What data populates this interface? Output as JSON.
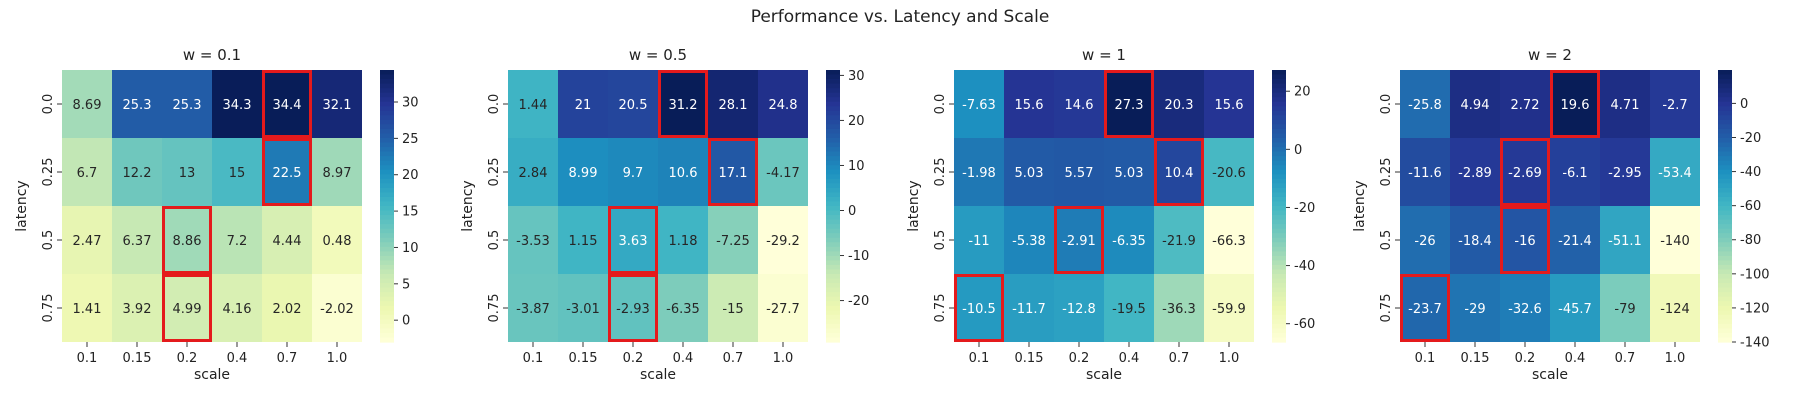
{
  "title": "Performance vs. Latency and Scale",
  "chart_data": [
    {
      "type": "heatmap",
      "title": "w = 0.1",
      "xlabel": "scale",
      "ylabel": "latency",
      "x_categories": [
        "0.1",
        "0.15",
        "0.2",
        "0.4",
        "0.7",
        "1.0"
      ],
      "y_categories": [
        "0.0",
        "0.25",
        "0.5",
        "0.75"
      ],
      "values": [
        [
          8.69,
          25.3,
          25.3,
          34.3,
          34.4,
          32.1
        ],
        [
          6.7,
          12.2,
          13,
          15,
          22.5,
          8.97
        ],
        [
          2.47,
          6.37,
          8.86,
          7.2,
          4.44,
          0.48
        ],
        [
          1.41,
          3.92,
          4.99,
          4.16,
          2.02,
          -2.02
        ]
      ],
      "labels": [
        [
          "8.69",
          "25.3",
          "25.3",
          "34.3",
          "34.4",
          "32.1"
        ],
        [
          "6.7",
          "12.2",
          "13",
          "15",
          "22.5",
          "8.97"
        ],
        [
          "2.47",
          "6.37",
          "8.86",
          "7.2",
          "4.44",
          "0.48"
        ],
        [
          "1.41",
          "3.92",
          "4.99",
          "4.16",
          "2.02",
          "-2.02"
        ]
      ],
      "vmin": -3,
      "vmax": 34.4,
      "colorbar_ticks": [
        "0",
        "5",
        "10",
        "15",
        "20",
        "25",
        "30"
      ],
      "highlighted": [
        [
          0,
          4
        ],
        [
          1,
          4
        ],
        [
          2,
          2
        ],
        [
          3,
          2
        ]
      ]
    },
    {
      "type": "heatmap",
      "title": "w = 0.5",
      "xlabel": "scale",
      "ylabel": "latency",
      "x_categories": [
        "0.1",
        "0.15",
        "0.2",
        "0.4",
        "0.7",
        "1.0"
      ],
      "y_categories": [
        "0.0",
        "0.25",
        "0.5",
        "0.75"
      ],
      "values": [
        [
          1.44,
          21,
          20.5,
          31.2,
          28.1,
          24.8
        ],
        [
          2.84,
          8.99,
          9.7,
          10.6,
          17.1,
          -4.17
        ],
        [
          -3.53,
          1.15,
          3.63,
          1.18,
          -7.25,
          -29.2
        ],
        [
          -3.87,
          -3.01,
          -2.93,
          -6.35,
          -15,
          -27.7
        ]
      ],
      "labels": [
        [
          "1.44",
          "21",
          "20.5",
          "31.2",
          "28.1",
          "24.8"
        ],
        [
          "2.84",
          "8.99",
          "9.7",
          "10.6",
          "17.1",
          "-4.17"
        ],
        [
          "-3.53",
          "1.15",
          "3.63",
          "1.18",
          "-7.25",
          "-29.2"
        ],
        [
          "-3.87",
          "-3.01",
          "-2.93",
          "-6.35",
          "-15",
          "-27.7"
        ]
      ],
      "vmin": -29.2,
      "vmax": 31.2,
      "colorbar_ticks": [
        "-20",
        "-10",
        "0",
        "10",
        "20",
        "30"
      ],
      "highlighted": [
        [
          0,
          3
        ],
        [
          1,
          4
        ],
        [
          2,
          2
        ],
        [
          3,
          2
        ]
      ]
    },
    {
      "type": "heatmap",
      "title": "w = 1",
      "xlabel": "scale",
      "ylabel": "latency",
      "x_categories": [
        "0.1",
        "0.15",
        "0.2",
        "0.4",
        "0.7",
        "1.0"
      ],
      "y_categories": [
        "0.0",
        "0.25",
        "0.5",
        "0.75"
      ],
      "values": [
        [
          -7.63,
          15.6,
          14.6,
          27.3,
          20.3,
          15.6
        ],
        [
          -1.98,
          5.03,
          5.57,
          5.03,
          10.4,
          -20.6
        ],
        [
          -11,
          -5.38,
          -2.91,
          -6.35,
          -21.9,
          -66.3
        ],
        [
          -10.5,
          -11.7,
          -12.8,
          -19.5,
          -36.3,
          -59.9
        ]
      ],
      "labels": [
        [
          "-7.63",
          "15.6",
          "14.6",
          "27.3",
          "20.3",
          "15.6"
        ],
        [
          "-1.98",
          "5.03",
          "5.57",
          "5.03",
          "10.4",
          "-20.6"
        ],
        [
          "-11",
          "-5.38",
          "-2.91",
          "-6.35",
          "-21.9",
          "-66.3"
        ],
        [
          "-10.5",
          "-11.7",
          "-12.8",
          "-19.5",
          "-36.3",
          "-59.9"
        ]
      ],
      "vmin": -66.3,
      "vmax": 27.3,
      "colorbar_ticks": [
        "-60",
        "-40",
        "-20",
        "0",
        "20"
      ],
      "highlighted": [
        [
          0,
          3
        ],
        [
          1,
          4
        ],
        [
          2,
          2
        ],
        [
          3,
          0
        ]
      ]
    },
    {
      "type": "heatmap",
      "title": "w = 2",
      "xlabel": "scale",
      "ylabel": "latency",
      "x_categories": [
        "0.1",
        "0.15",
        "0.2",
        "0.4",
        "0.7",
        "1.0"
      ],
      "y_categories": [
        "0.0",
        "0.25",
        "0.5",
        "0.75"
      ],
      "values": [
        [
          -25.8,
          4.94,
          2.72,
          19.6,
          4.71,
          -2.7
        ],
        [
          -11.6,
          -2.89,
          -2.69,
          -6.1,
          -2.95,
          -53.4
        ],
        [
          -26,
          -18.4,
          -16,
          -21.4,
          -51.1,
          -140
        ],
        [
          -23.7,
          -29,
          -32.6,
          -45.7,
          -79,
          -124
        ]
      ],
      "labels": [
        [
          "-25.8",
          "4.94",
          "2.72",
          "19.6",
          "4.71",
          "-2.7"
        ],
        [
          "-11.6",
          "-2.89",
          "-2.69",
          "-6.1",
          "-2.95",
          "-53.4"
        ],
        [
          "-26",
          "-18.4",
          "-16",
          "-21.4",
          "-51.1",
          "-140"
        ],
        [
          "-23.7",
          "-29",
          "-32.6",
          "-45.7",
          "-79",
          "-124"
        ]
      ],
      "vmin": -140,
      "vmax": 19.6,
      "colorbar_ticks": [
        "-140",
        "-120",
        "-100",
        "-80",
        "-60",
        "-40",
        "-20",
        "0"
      ],
      "highlighted": [
        [
          0,
          3
        ],
        [
          1,
          2
        ],
        [
          2,
          2
        ],
        [
          3,
          0
        ]
      ]
    }
  ],
  "colormap": "YlGnBu",
  "highlight_color": "#e41a1c"
}
